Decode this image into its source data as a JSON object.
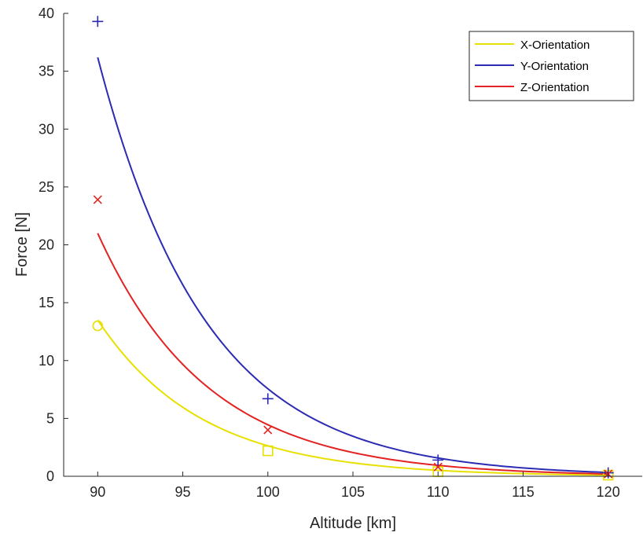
{
  "chart_data": {
    "type": "scatter",
    "title": "",
    "xlabel": "Altitude [km]",
    "ylabel": "Force [N]",
    "xlim": [
      88,
      122
    ],
    "ylim": [
      0,
      40
    ],
    "xticks": [
      90,
      95,
      100,
      105,
      110,
      115,
      120
    ],
    "yticks": [
      0,
      5,
      10,
      15,
      20,
      25,
      30,
      35,
      40
    ],
    "grid": false,
    "legend_position": "top-right",
    "series": [
      {
        "name": "X-Orientation",
        "color": "#e8e000",
        "marker": "square-circle",
        "points": {
          "x": [
            90,
            100,
            110,
            120
          ],
          "y": [
            13.0,
            2.2,
            0.4,
            0.1
          ]
        },
        "fit": {
          "model": "exponential",
          "x_start": 90,
          "x_end": 120,
          "y_start": 13.5,
          "y_end": 0.1
        }
      },
      {
        "name": "Y-Orientation",
        "color": "#2b2bb3",
        "marker": "plus",
        "points": {
          "x": [
            90,
            100,
            110,
            120
          ],
          "y": [
            39.3,
            6.7,
            1.4,
            0.3
          ]
        },
        "fit": {
          "model": "exponential",
          "x_start": 90,
          "x_end": 120,
          "y_start": 36.2,
          "y_end": 0.33
        }
      },
      {
        "name": "Z-Orientation",
        "color": "#e32222",
        "marker": "x",
        "points": {
          "x": [
            90,
            100,
            110,
            120
          ],
          "y": [
            23.9,
            4.0,
            0.8,
            0.2
          ]
        },
        "fit": {
          "model": "exponential",
          "x_start": 90,
          "x_end": 120,
          "y_start": 21.0,
          "y_end": 0.2
        }
      }
    ]
  }
}
